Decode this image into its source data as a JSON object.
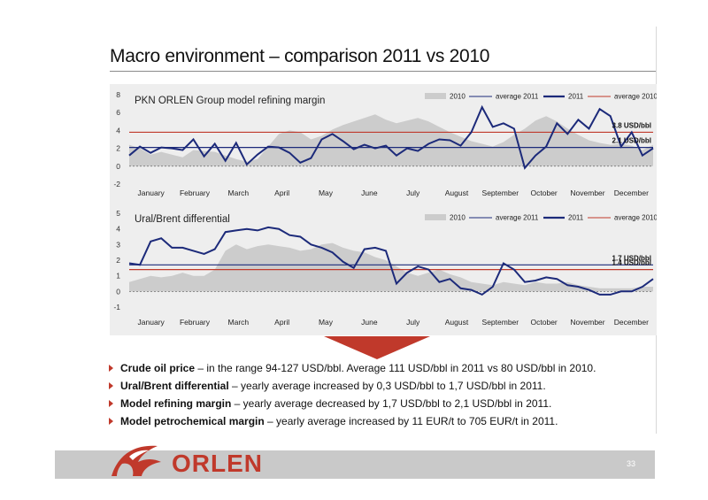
{
  "slide": {
    "title": "Macro environment – comparison 2011 vs 2010",
    "page_number": "33",
    "brand": "ORLEN"
  },
  "colors": {
    "red": "#c0392b",
    "navy": "#1c2a7a",
    "band_2010": "#cccccc",
    "panel_bg": "#eeeeee"
  },
  "chart_data": [
    {
      "type": "line",
      "title": "PKN ORLEN Group model refining margin",
      "ylabel": "",
      "ylim": [
        -2,
        8
      ],
      "yticks": [
        -2,
        0,
        2,
        4,
        6,
        8
      ],
      "x_tick_labels": [
        "January",
        "February",
        "March",
        "April",
        "May",
        "June",
        "July",
        "August",
        "September",
        "October",
        "November",
        "December"
      ],
      "legend": [
        "2010",
        "average 2011",
        "2011",
        "average 2010"
      ],
      "legend_position": "top-right",
      "annotations": [
        "3.8 USD/bbl",
        "2.1 USD/bbl"
      ],
      "series": [
        {
          "name": "2010",
          "style": "area",
          "values": [
            2.4,
            2.0,
            1.3,
            1.6,
            1.3,
            1.0,
            1.8,
            1.7,
            1.6,
            1.2,
            0.8,
            0.5,
            0.8,
            2.2,
            3.6,
            4.0,
            3.8,
            3.0,
            3.4,
            4.1,
            4.6,
            5.0,
            5.4,
            5.8,
            5.2,
            4.8,
            5.1,
            5.4,
            5.0,
            4.4,
            3.8,
            3.3,
            2.8,
            2.5,
            2.2,
            2.7,
            3.5,
            4.2,
            5.1,
            5.6,
            5.0,
            4.2,
            3.5,
            2.9,
            2.6,
            2.4,
            2.5,
            2.3,
            1.8,
            2.4
          ]
        },
        {
          "name": "2011",
          "style": "line",
          "values": [
            1.2,
            2.2,
            1.5,
            2.1,
            2.0,
            1.8,
            3.0,
            1.1,
            2.5,
            0.6,
            2.6,
            0.2,
            1.3,
            2.2,
            2.1,
            1.5,
            0.4,
            0.9,
            3.0,
            3.6,
            2.8,
            1.9,
            2.4,
            2.0,
            2.3,
            1.2,
            2.0,
            1.7,
            2.5,
            3.0,
            2.9,
            2.3,
            3.8,
            6.6,
            4.4,
            4.8,
            4.2,
            -0.2,
            1.2,
            2.2,
            4.8,
            3.6,
            5.2,
            4.2,
            6.4,
            5.6,
            2.2,
            3.8,
            1.2,
            2.0
          ]
        },
        {
          "name": "average 2011",
          "style": "hline",
          "values": [
            2.1
          ]
        },
        {
          "name": "average 2010",
          "style": "hline",
          "values": [
            3.8
          ]
        }
      ]
    },
    {
      "type": "line",
      "title": "Ural/Brent differential",
      "ylabel": "",
      "ylim": [
        -1,
        5
      ],
      "yticks": [
        -1,
        0,
        1,
        2,
        3,
        4,
        5
      ],
      "x_tick_labels": [
        "January",
        "February",
        "March",
        "April",
        "May",
        "June",
        "July",
        "August",
        "September",
        "October",
        "November",
        "December"
      ],
      "legend": [
        "2010",
        "average 2011",
        "2011",
        "average 2010"
      ],
      "legend_position": "top-right",
      "annotations": [
        "1.7 USD/bbl",
        "1.4 USD/bbl"
      ],
      "series": [
        {
          "name": "2010",
          "style": "area",
          "values": [
            0.6,
            0.8,
            1.0,
            0.9,
            1.0,
            1.2,
            1.0,
            1.0,
            1.4,
            2.6,
            3.0,
            2.7,
            2.9,
            3.0,
            2.9,
            2.8,
            2.6,
            2.7,
            3.0,
            3.1,
            2.8,
            2.6,
            2.5,
            2.2,
            2.0,
            1.6,
            1.2,
            1.0,
            1.2,
            1.4,
            1.1,
            0.9,
            0.6,
            0.5,
            0.4,
            0.6,
            0.5,
            0.4,
            0.6,
            0.5,
            0.5,
            0.6,
            0.4,
            0.3,
            0.2,
            0.2,
            0.2,
            0.2,
            0.3,
            0.3
          ]
        },
        {
          "name": "2011",
          "style": "line",
          "values": [
            1.8,
            1.7,
            3.2,
            3.4,
            2.8,
            2.8,
            2.6,
            2.4,
            2.7,
            3.8,
            3.9,
            4.0,
            3.9,
            4.1,
            4.0,
            3.6,
            3.5,
            3.0,
            2.8,
            2.5,
            1.9,
            1.5,
            2.7,
            2.8,
            2.6,
            0.5,
            1.2,
            1.6,
            1.4,
            0.6,
            0.8,
            0.2,
            0.1,
            -0.2,
            0.3,
            1.8,
            1.4,
            0.6,
            0.7,
            0.9,
            0.8,
            0.4,
            0.3,
            0.1,
            -0.2,
            -0.2,
            0.0,
            0.0,
            0.3,
            0.8
          ]
        },
        {
          "name": "average 2011",
          "style": "hline",
          "values": [
            1.7
          ]
        },
        {
          "name": "average 2010",
          "style": "hline",
          "values": [
            1.4
          ]
        }
      ]
    }
  ],
  "bullets": [
    {
      "term": "Crude oil price",
      "text": " – in the range 94-127 USD/bbl. Average 111 USD/bbl in 2011 vs 80 USD/bbl in 2010."
    },
    {
      "term": "Ural/Brent differential",
      "text": " –  yearly average increased by 0,3 USD/bbl to 1,7 USD/bbl in 2011."
    },
    {
      "term": "Model refining margin",
      "text": " – yearly average decreased by 1,7 USD/bbl to 2,1 USD/bbl in 2011."
    },
    {
      "term": "Model petrochemical margin",
      "text": " – yearly average increased by 11 EUR/t to 705 EUR/t in 2011."
    }
  ]
}
